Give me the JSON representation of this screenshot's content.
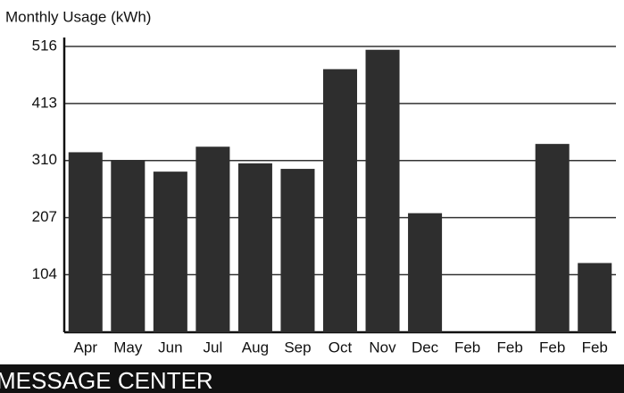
{
  "chart_data": {
    "type": "bar",
    "title": "Monthly Usage (kWh)",
    "categories": [
      "Apr",
      "May",
      "Jun",
      "Jul",
      "Aug",
      "Sep",
      "Oct",
      "Nov",
      "Dec",
      "Feb",
      "Feb",
      "Feb",
      "Feb"
    ],
    "values": [
      325,
      310,
      290,
      335,
      305,
      295,
      475,
      510,
      215,
      0,
      0,
      340,
      125
    ],
    "color": "#2e2e2e",
    "ylim": [
      0,
      516
    ],
    "yticks": [
      104,
      207,
      310,
      413,
      516
    ],
    "grid": true
  },
  "footer": "MESSAGE CENTER"
}
